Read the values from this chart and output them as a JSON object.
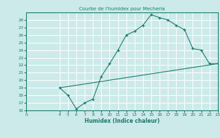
{
  "title": "Courbe de l'humidex pour Mecheria",
  "xlabel": "Humidex (Indice chaleur)",
  "bg_color": "#cceaea",
  "grid_color": "#ffffff",
  "line_color": "#1a7a6e",
  "xlim": [
    0,
    23
  ],
  "ylim": [
    16,
    29
  ],
  "xticks": [
    0,
    4,
    5,
    6,
    7,
    8,
    9,
    10,
    11,
    12,
    13,
    14,
    15,
    16,
    17,
    18,
    19,
    20,
    21,
    22,
    23
  ],
  "yticks": [
    16,
    17,
    18,
    19,
    20,
    21,
    22,
    23,
    24,
    25,
    26,
    27,
    28
  ],
  "curve_x": [
    4,
    5,
    6,
    7,
    8,
    9,
    10,
    11,
    12,
    13,
    14,
    15,
    16,
    17,
    18,
    19,
    20,
    21,
    22,
    23
  ],
  "curve_y": [
    19,
    18.0,
    16.2,
    17.0,
    17.5,
    20.5,
    22.2,
    24.0,
    26.0,
    26.5,
    27.3,
    28.7,
    28.3,
    28.0,
    27.3,
    26.7,
    24.2,
    24.0,
    22.2,
    22.2
  ],
  "line_x": [
    4,
    23
  ],
  "line_y": [
    19.0,
    22.2
  ]
}
